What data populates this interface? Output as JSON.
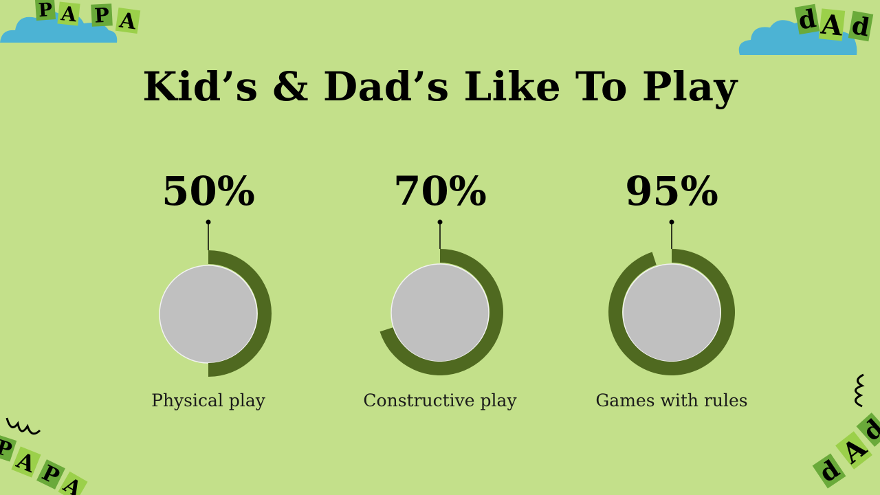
{
  "slide": {
    "title": "Kid’s & Dad’s Like To Play"
  },
  "colors": {
    "background": "#c3e08a",
    "ring": "#4f6920",
    "disc": "#c0c0c0",
    "cloud": "#4cb3d4",
    "tile_dark": "#6aaa3a",
    "tile_light": "#9bd04a"
  },
  "decorations": {
    "top_left_letters": [
      "P",
      "A",
      "P",
      "A"
    ],
    "top_right_letters": [
      "d",
      "A",
      "d"
    ],
    "bottom_left_letters": [
      "P",
      "A",
      "P",
      "A"
    ],
    "bottom_right_letters": [
      "d",
      "A",
      "d"
    ]
  },
  "chart_data": {
    "type": "pie",
    "categories": [
      "Physical play",
      "Constructive play",
      "Games with rules"
    ],
    "values": [
      50,
      70,
      95
    ],
    "labels": [
      "50%",
      "70%",
      "95%"
    ],
    "unit": "%",
    "max": 100
  }
}
